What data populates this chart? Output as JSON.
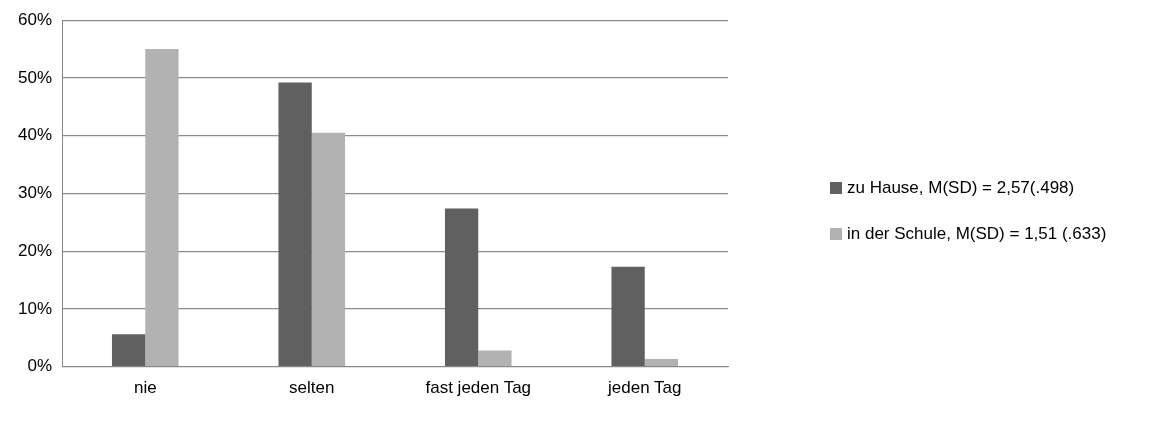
{
  "chart_data": {
    "type": "bar",
    "categories": [
      "nie",
      "selten",
      "fast jeden Tag",
      "jeden Tag"
    ],
    "series": [
      {
        "name": "zu Hause, M(SD) = 2,57(.498)",
        "color": "#606060",
        "values": [
          5.6,
          49.2,
          27.4,
          17.3
        ]
      },
      {
        "name": "in der Schule, M(SD) = 1,51 (.633)",
        "color": "#b2b2b2",
        "values": [
          55.0,
          40.5,
          2.8,
          1.3
        ]
      }
    ],
    "ylim": [
      0,
      60
    ],
    "yticks": [
      {
        "value": 0,
        "label": "0%"
      },
      {
        "value": 10,
        "label": "10%"
      },
      {
        "value": 20,
        "label": "20%"
      },
      {
        "value": 30,
        "label": "30%"
      },
      {
        "value": 40,
        "label": "40%"
      },
      {
        "value": 50,
        "label": "50%"
      },
      {
        "value": 60,
        "label": "60%"
      }
    ],
    "grid": "y",
    "legend": "right"
  }
}
